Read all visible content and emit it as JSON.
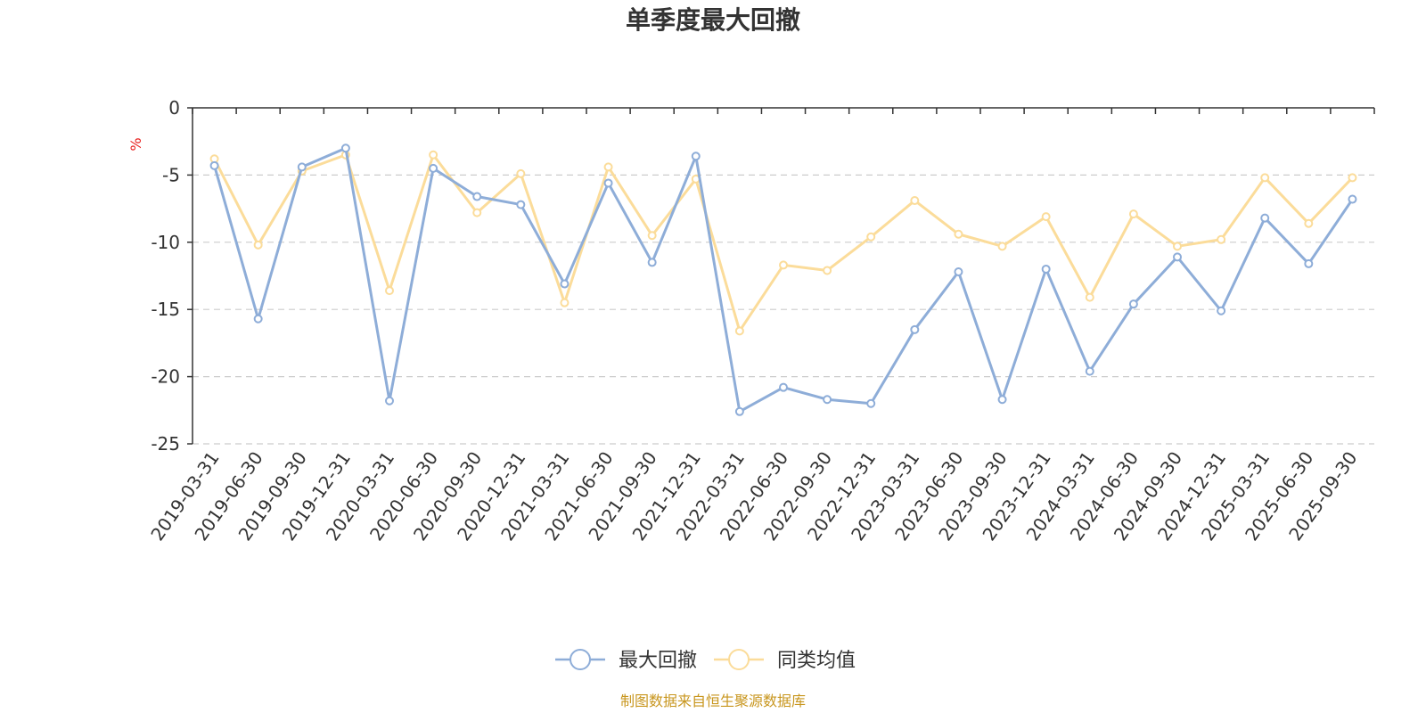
{
  "chart_data": {
    "type": "line",
    "title": "单季度最大回撤",
    "ylabel": "%",
    "ylim": [
      -25,
      0
    ],
    "yticks": [
      0,
      -5,
      -10,
      -15,
      -20,
      -25
    ],
    "grid": true,
    "legend_position": "bottom-center",
    "categories": [
      "2019-03-31",
      "2019-06-30",
      "2019-09-30",
      "2019-12-31",
      "2020-03-31",
      "2020-06-30",
      "2020-09-30",
      "2020-12-31",
      "2021-03-31",
      "2021-06-30",
      "2021-09-30",
      "2021-12-31",
      "2022-03-31",
      "2022-06-30",
      "2022-09-30",
      "2022-12-31",
      "2023-03-31",
      "2023-06-30",
      "2023-09-30",
      "2023-12-31",
      "2024-03-31",
      "2024-06-30",
      "2024-09-30",
      "2024-12-31",
      "2025-03-31",
      "2025-06-30",
      "2025-09-30"
    ],
    "series": [
      {
        "name": "最大回撤",
        "color": "#8eadd8",
        "values": [
          -4.3,
          -15.7,
          -4.4,
          -3.0,
          -21.8,
          -4.5,
          -6.6,
          -7.2,
          -13.1,
          -5.6,
          -11.5,
          -3.6,
          -22.6,
          -20.8,
          -21.7,
          -22.0,
          -16.5,
          -12.2,
          -21.7,
          -12.0,
          -19.6,
          -14.6,
          -11.1,
          -15.1,
          -8.2,
          -11.6,
          -6.8
        ]
      },
      {
        "name": "同类均值",
        "color": "#fbdc9a",
        "values": [
          -3.8,
          -10.2,
          -4.7,
          -3.5,
          -13.6,
          -3.5,
          -7.8,
          -4.9,
          -14.5,
          -4.4,
          -9.5,
          -5.3,
          -16.6,
          -11.7,
          -12.1,
          -9.6,
          -6.9,
          -9.4,
          -10.3,
          -8.1,
          -14.1,
          -7.9,
          -10.3,
          -9.8,
          -5.2,
          -8.6,
          -5.2
        ]
      }
    ]
  },
  "source_note": "制图数据来自恒生聚源数据库"
}
